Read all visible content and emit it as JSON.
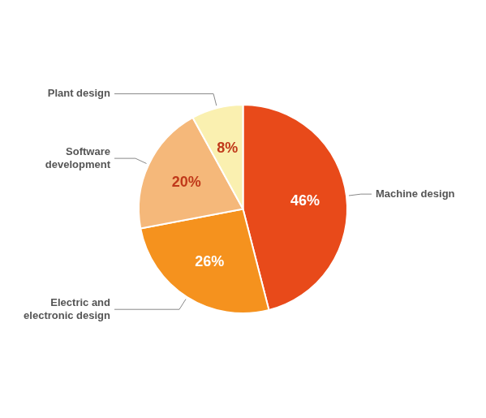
{
  "chart_data": {
    "type": "pie",
    "categories": [
      "Machine design",
      "Electric and\nelectronic design",
      "Software\ndevelopment",
      "Plant design"
    ],
    "values": [
      46,
      26,
      20,
      8
    ],
    "value_labels": [
      "46%",
      "26%",
      "20%",
      "8%"
    ],
    "colors": [
      "#E84A1A",
      "#F5921E",
      "#F5B87A",
      "#FAF0B0"
    ],
    "data_labels": true
  }
}
